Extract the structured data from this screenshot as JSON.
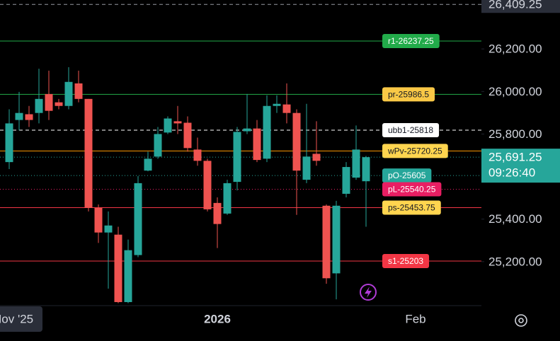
{
  "chart_data": {
    "type": "candlestick",
    "categories": [
      "Nov '25",
      null,
      null,
      null,
      null,
      null,
      null,
      null,
      null,
      null,
      null,
      null,
      null,
      null,
      null,
      null,
      null,
      null,
      null,
      null,
      null,
      "2026",
      null,
      null,
      null,
      null,
      null,
      null,
      null,
      null,
      null,
      null,
      null,
      null,
      null,
      null,
      null,
      null,
      null,
      null,
      null,
      "Feb",
      null,
      null,
      null,
      null,
      null
    ],
    "open": [
      25668,
      25866,
      25893,
      25899,
      25988,
      25949,
      25932,
      26038,
      25965,
      25453,
      25337,
      25327,
      25010,
      25231,
      25628,
      25694,
      25807,
      25860,
      25853,
      25727,
      25674,
      25476,
      25426,
      25575,
      25813,
      25826,
      25684,
      25932,
      25939,
      25899,
      25585,
      25707,
      25463,
      25145,
      25519,
      25595,
      25578,
      null,
      null,
      null,
      null,
      null,
      null,
      null,
      null,
      null,
      null
    ],
    "high": [
      25916,
      25998,
      25932,
      26107,
      26098,
      25965,
      26114,
      26098,
      25965,
      25469,
      25436,
      25364,
      25304,
      25602,
      25717,
      25833,
      25883,
      25932,
      25883,
      25783,
      25684,
      25502,
      25585,
      25833,
      25988,
      25866,
      25982,
      25982,
      26038,
      25916,
      25942,
      25860,
      25469,
      25486,
      25668,
      25840,
      25697,
      null,
      null,
      null,
      null,
      null,
      null,
      null,
      null,
      null,
      null
    ],
    "low": [
      25635,
      25817,
      25833,
      25850,
      25866,
      25916,
      25916,
      25949,
      25436,
      25288,
      25073,
      25005,
      25005,
      25221,
      25625,
      25684,
      25800,
      25800,
      25717,
      25651,
      25436,
      25264,
      25420,
      25535,
      25800,
      25668,
      25668,
      25899,
      25850,
      25420,
      25569,
      25651,
      25096,
      25023,
      25502,
      25585,
      25364,
      null,
      null,
      null,
      null,
      null,
      null,
      null,
      null,
      null,
      null
    ],
    "close": [
      25850,
      25899,
      25866,
      25965,
      25909,
      25932,
      26045,
      25965,
      25453,
      25337,
      25370,
      25010,
      25254,
      25569,
      25684,
      25800,
      25873,
      25850,
      25734,
      25674,
      25446,
      25377,
      25569,
      25810,
      25826,
      25678,
      25932,
      25942,
      25899,
      25628,
      25694,
      25674,
      25122,
      25463,
      25645,
      25727,
      25691.25,
      null,
      null,
      null,
      null,
      null,
      null,
      null,
      null,
      null,
      null
    ],
    "up_color": "#26a69a",
    "down_color": "#ef5350",
    "ylim": [
      25000,
      26430
    ],
    "yticks": [
      {
        "value": 25200,
        "label": "25,200.00"
      },
      {
        "value": 25400,
        "label": "25,400.00"
      },
      {
        "value": 25800,
        "label": "25,800.00"
      },
      {
        "value": 26000,
        "label": "26,000.00"
      },
      {
        "value": 26200,
        "label": "26,200.00"
      }
    ],
    "levels": [
      {
        "value": 26237.25,
        "label": "r1-26237.25",
        "color": "#22ab4a",
        "text_color": "#ffffff",
        "style": "solid"
      },
      {
        "value": 25986.5,
        "label": "pr-25986.5",
        "color": "#f9c846",
        "line_color": "#22ab4a",
        "text_color": "#131722",
        "style": "solid"
      },
      {
        "value": 25818,
        "label": "ubb1-25818",
        "color": "#ffffff",
        "text_color": "#131722",
        "style": "dashed"
      },
      {
        "value": 25720.25,
        "label": "wPv-25720.25",
        "color": "#ffd54f",
        "line_color": "#ff9800",
        "text_color": "#131722",
        "style": "solid"
      },
      {
        "value": 25605,
        "label": "pO-25605",
        "color": "#26a69a",
        "text_color": "#ffffff",
        "style": "dotted"
      },
      {
        "value": 25540.25,
        "label": "pL-25540.25",
        "color": "#e91e63",
        "text_color": "#ffffff",
        "style": "dotted"
      },
      {
        "value": 25453.75,
        "label": "ps-25453.75",
        "color": "#ffd54f",
        "line_color": "#f23645",
        "text_color": "#131722",
        "style": "solid"
      },
      {
        "value": 25203,
        "label": "s1-25203",
        "color": "#f23645",
        "text_color": "#ffffff",
        "style": "solid"
      }
    ],
    "high_marker": {
      "value": 26409.25,
      "label": "26,409.25"
    },
    "last_price": {
      "value": 25691.25,
      "label": "25,691.25",
      "countdown": "09:26:40"
    }
  }
}
